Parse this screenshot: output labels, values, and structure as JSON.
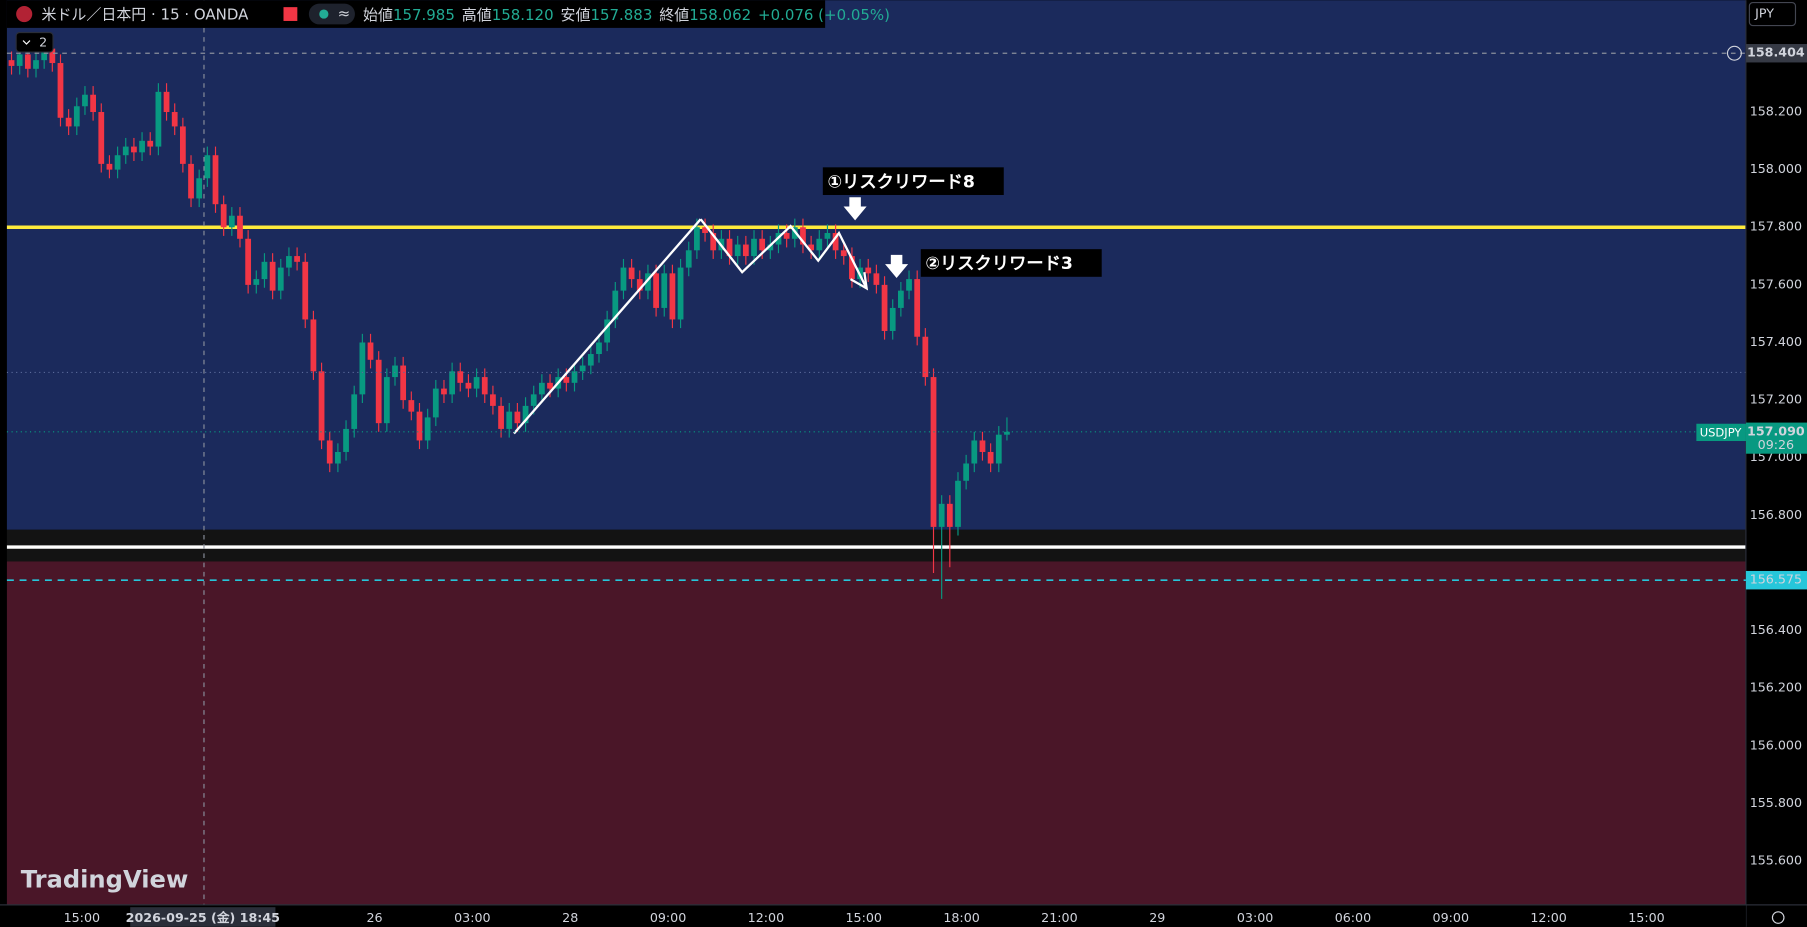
{
  "chart_data": {
    "type": "candlestick",
    "title": "米ドル／日本円 · 15 · OANDA",
    "ohlc_header": {
      "open_label": "始値",
      "open": "157.985",
      "high_label": "高値",
      "high": "158.120",
      "low_label": "安値",
      "low": "157.883",
      "close_label": "終値",
      "close": "158.062",
      "change": "+0.076 (+0.05%)"
    },
    "currency": "JPY",
    "collapse_count": "2",
    "watermark": "TradingView",
    "annotations": [
      "①リスクリワード8",
      "②リスクリワード3"
    ],
    "crosshair_time": "2026-09-25 (金)  18:45",
    "up_color": "#089981",
    "down_color": "#f23645",
    "open": [
      158.38,
      158.36,
      158.4,
      158.35,
      158.38,
      158.42,
      158.37,
      158.18,
      158.15,
      158.22,
      158.26,
      158.2,
      158.02,
      158.0,
      158.05,
      158.08,
      158.06,
      158.1,
      158.08,
      158.27,
      158.2,
      158.15,
      158.02,
      157.9,
      157.97,
      158.05,
      157.88,
      157.8,
      157.84,
      157.76,
      157.6,
      157.62,
      157.68,
      157.58,
      157.66,
      157.7,
      157.68,
      157.48,
      157.3,
      157.06,
      156.98,
      157.02,
      157.1,
      157.22,
      157.4,
      157.34,
      157.12,
      157.28,
      157.32,
      157.2,
      157.16,
      157.06,
      157.14,
      157.24,
      157.22,
      157.3,
      157.26,
      157.24,
      157.28,
      157.22,
      157.18,
      157.1,
      157.16,
      157.12,
      157.18,
      157.22,
      157.26,
      157.24,
      157.28,
      157.26,
      157.3,
      157.32,
      157.36,
      157.4,
      157.48,
      157.58,
      157.66,
      157.62,
      157.58,
      157.64,
      157.52,
      157.64,
      157.48,
      157.66,
      157.72,
      157.8,
      157.78,
      157.72,
      157.76,
      157.7,
      157.74,
      157.7,
      157.76,
      157.72,
      157.74,
      157.78,
      157.76,
      157.8,
      157.74,
      157.72,
      157.76,
      157.78,
      157.72,
      157.7,
      157.62,
      157.66,
      157.64,
      157.6,
      157.44,
      157.52,
      157.58,
      157.62,
      157.42,
      157.28,
      156.76,
      156.84,
      156.76,
      156.92,
      156.98,
      157.06,
      157.02,
      156.98,
      157.08
    ],
    "high": [
      158.41,
      158.43,
      158.43,
      158.41,
      158.45,
      158.45,
      158.4,
      158.21,
      158.25,
      158.29,
      158.29,
      158.23,
      158.05,
      158.08,
      158.11,
      158.11,
      158.13,
      158.13,
      158.3,
      158.3,
      158.23,
      158.18,
      158.05,
      158.0,
      158.08,
      158.08,
      157.91,
      157.87,
      157.87,
      157.79,
      157.65,
      157.71,
      157.71,
      157.69,
      157.73,
      157.73,
      157.71,
      157.51,
      157.33,
      157.09,
      157.05,
      157.13,
      157.25,
      157.43,
      157.43,
      157.37,
      157.31,
      157.35,
      157.35,
      157.23,
      157.19,
      157.17,
      157.27,
      157.27,
      157.33,
      157.33,
      157.29,
      157.31,
      157.31,
      157.25,
      157.21,
      157.19,
      157.19,
      157.21,
      157.25,
      157.29,
      157.29,
      157.31,
      157.31,
      157.33,
      157.35,
      157.39,
      157.43,
      157.51,
      157.61,
      157.69,
      157.69,
      157.65,
      157.67,
      157.67,
      157.67,
      157.67,
      157.69,
      157.75,
      157.83,
      157.83,
      157.81,
      157.79,
      157.79,
      157.77,
      157.77,
      157.79,
      157.79,
      157.77,
      157.81,
      157.81,
      157.83,
      157.83,
      157.77,
      157.79,
      157.81,
      157.81,
      157.75,
      157.73,
      157.69,
      157.69,
      157.67,
      157.63,
      157.55,
      157.61,
      157.65,
      157.65,
      157.45,
      157.31,
      156.87,
      156.87,
      156.95,
      157.01,
      157.09,
      157.09,
      157.05,
      157.11,
      157.14
    ],
    "low": [
      158.33,
      158.33,
      158.32,
      158.32,
      158.35,
      158.34,
      158.15,
      158.12,
      158.12,
      158.19,
      158.17,
      157.99,
      157.97,
      157.97,
      158.02,
      158.03,
      158.03,
      158.05,
      158.05,
      158.17,
      158.12,
      157.99,
      157.87,
      157.87,
      157.94,
      157.85,
      157.77,
      157.77,
      157.73,
      157.57,
      157.57,
      157.59,
      157.55,
      157.55,
      157.63,
      157.65,
      157.45,
      157.27,
      157.03,
      156.95,
      156.95,
      156.99,
      157.07,
      157.19,
      157.31,
      157.09,
      157.09,
      157.25,
      157.17,
      157.13,
      157.03,
      157.03,
      157.11,
      157.19,
      157.19,
      157.23,
      157.21,
      157.21,
      157.19,
      157.15,
      157.07,
      157.07,
      157.09,
      157.09,
      157.15,
      157.19,
      157.21,
      157.21,
      157.23,
      157.23,
      157.27,
      157.29,
      157.33,
      157.37,
      157.45,
      157.55,
      157.59,
      157.55,
      157.55,
      157.49,
      157.49,
      157.45,
      157.45,
      157.63,
      157.69,
      157.75,
      157.69,
      157.69,
      157.67,
      157.67,
      157.67,
      157.67,
      157.69,
      157.69,
      157.71,
      157.73,
      157.73,
      157.71,
      157.69,
      157.69,
      157.73,
      157.69,
      157.67,
      157.59,
      157.59,
      157.61,
      157.57,
      157.41,
      157.41,
      157.49,
      157.55,
      157.39,
      157.25,
      156.6,
      156.51,
      156.62,
      156.73,
      156.89,
      156.95,
      156.99,
      156.95,
      156.95,
      157.06
    ],
    "close": [
      158.36,
      158.4,
      158.35,
      158.38,
      158.42,
      158.37,
      158.18,
      158.15,
      158.22,
      158.26,
      158.2,
      158.02,
      158.0,
      158.05,
      158.08,
      158.06,
      158.1,
      158.08,
      158.27,
      158.2,
      158.15,
      158.02,
      157.9,
      157.97,
      158.05,
      157.88,
      157.8,
      157.84,
      157.76,
      157.6,
      157.62,
      157.68,
      157.58,
      157.66,
      157.7,
      157.68,
      157.48,
      157.3,
      157.06,
      156.98,
      157.02,
      157.1,
      157.22,
      157.4,
      157.34,
      157.12,
      157.28,
      157.32,
      157.2,
      157.16,
      157.06,
      157.14,
      157.24,
      157.22,
      157.3,
      157.26,
      157.24,
      157.28,
      157.22,
      157.18,
      157.1,
      157.16,
      157.12,
      157.18,
      157.22,
      157.26,
      157.24,
      157.28,
      157.26,
      157.3,
      157.32,
      157.36,
      157.4,
      157.48,
      157.58,
      157.66,
      157.62,
      157.58,
      157.64,
      157.52,
      157.64,
      157.48,
      157.66,
      157.72,
      157.8,
      157.78,
      157.72,
      157.76,
      157.7,
      157.74,
      157.7,
      157.76,
      157.72,
      157.74,
      157.78,
      157.76,
      157.8,
      157.74,
      157.72,
      157.76,
      157.78,
      157.72,
      157.7,
      157.62,
      157.66,
      157.64,
      157.6,
      157.44,
      157.52,
      157.58,
      157.62,
      157.42,
      157.28,
      156.76,
      156.84,
      156.76,
      156.92,
      156.98,
      157.06,
      157.02,
      156.98,
      157.08,
      157.09
    ],
    "ylim": [
      155.448,
      158.588
    ],
    "yticks": [
      {
        "value": 155.6,
        "label": "155.600"
      },
      {
        "value": 155.8,
        "label": "155.800"
      },
      {
        "value": 156,
        "label": "156.000"
      },
      {
        "value": 156.2,
        "label": "156.200"
      },
      {
        "value": 156.4,
        "label": "156.400"
      },
      {
        "value": 156.8,
        "label": "156.800"
      },
      {
        "value": 157,
        "label": "157.000"
      },
      {
        "value": 157.2,
        "label": "157.200"
      },
      {
        "value": 157.4,
        "label": "157.400"
      },
      {
        "value": 157.6,
        "label": "157.600"
      },
      {
        "value": 157.8,
        "label": "157.800"
      },
      {
        "value": 158,
        "label": "158.000"
      },
      {
        "value": 158.2,
        "label": "158.200"
      }
    ],
    "xticks": [
      "15:00",
      "26",
      "03:00",
      "28",
      "09:00",
      "12:00",
      "15:00",
      "18:00",
      "21:00",
      "29",
      "03:00",
      "06:00",
      "09:00",
      "12:00",
      "15:00"
    ],
    "zones": [
      {
        "from": 156.75,
        "to": 158.588,
        "color": "#1b2a5c"
      },
      {
        "from": 156.64,
        "to": 156.75,
        "color": "#131313"
      },
      {
        "from": 155.448,
        "to": 156.64,
        "color": "#4a1628"
      }
    ],
    "horizontal_lines": [
      {
        "value": 157.8,
        "color": "#ffeb3b"
      },
      {
        "value": 156.69,
        "color": "#ffffff"
      }
    ],
    "symbol": "USDJPY",
    "countdown": "09:26",
    "current_price": {
      "value": 157.09,
      "label": "157.090"
    },
    "stop_price": {
      "value": 156.575,
      "label": "156.575"
    },
    "crosshair_price": {
      "value": 158.404,
      "label": "158.404"
    }
  }
}
